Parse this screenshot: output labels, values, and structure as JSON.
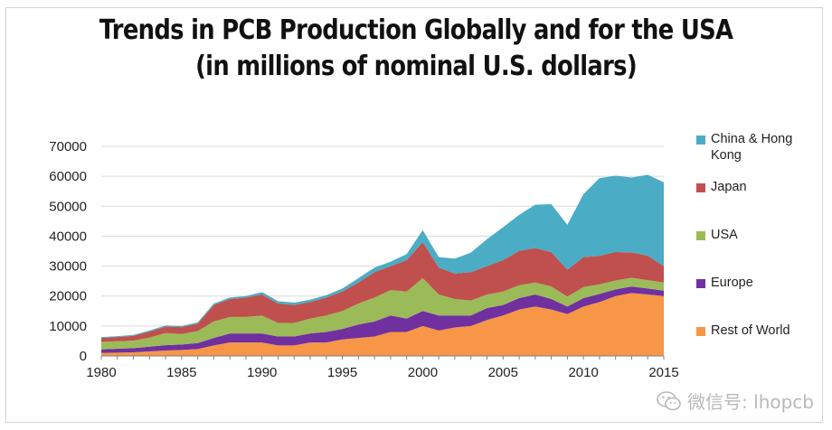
{
  "title": {
    "line1": "Trends in PCB Production Globally and for the USA",
    "line2": "(in millions of nominal U.S. dollars)"
  },
  "watermark": {
    "text": "微信号: lhopcb",
    "icon": "wechat-icon"
  },
  "chart_data": {
    "type": "area",
    "stacked": true,
    "title": "Trends in PCB Production Globally and for the USA (in millions of nominal U.S. dollars)",
    "xlim": [
      1980,
      2015
    ],
    "ylim": [
      0,
      70000
    ],
    "xticks": [
      1980,
      1985,
      1990,
      1995,
      2000,
      2005,
      2010,
      2015
    ],
    "yticks": [
      0,
      10000,
      20000,
      30000,
      40000,
      50000,
      60000,
      70000
    ],
    "grid": "horizontal",
    "legend_position": "right",
    "x": [
      1980,
      1981,
      1982,
      1983,
      1984,
      1985,
      1986,
      1987,
      1988,
      1989,
      1990,
      1991,
      1992,
      1993,
      1994,
      1995,
      1996,
      1997,
      1998,
      1999,
      2000,
      2001,
      2002,
      2003,
      2004,
      2005,
      2006,
      2007,
      2008,
      2009,
      2010,
      2011,
      2012,
      2013,
      2014,
      2015
    ],
    "series": [
      {
        "name": "Rest of World",
        "color": "#f79646",
        "values": [
          1000,
          1100,
          1200,
          1500,
          1800,
          2000,
          2300,
          3500,
          4500,
          4500,
          4500,
          3500,
          3500,
          4500,
          4500,
          5500,
          6000,
          6500,
          8000,
          8000,
          10000,
          8500,
          9500,
          10000,
          12000,
          13500,
          15500,
          16500,
          15500,
          14000,
          16500,
          18000,
          20000,
          21000,
          20500,
          20000
        ]
      },
      {
        "name": "Europe",
        "color": "#7030a0",
        "values": [
          1200,
          1300,
          1400,
          1600,
          1800,
          1800,
          2000,
          2500,
          3000,
          3000,
          3000,
          3000,
          3000,
          3000,
          3500,
          3500,
          4500,
          5000,
          5500,
          4500,
          5000,
          5000,
          4000,
          3500,
          4000,
          3500,
          3800,
          4000,
          3500,
          2500,
          2800,
          2700,
          2200,
          2200,
          2000,
          1800
        ]
      },
      {
        "name": "USA",
        "color": "#9bbb59",
        "values": [
          2500,
          2500,
          2500,
          3000,
          4000,
          3500,
          4000,
          5500,
          5500,
          5500,
          6000,
          4500,
          4500,
          5000,
          5500,
          6000,
          7000,
          8000,
          8500,
          9000,
          11000,
          7000,
          5500,
          5000,
          4500,
          4500,
          4300,
          4000,
          4200,
          3300,
          3700,
          3200,
          3000,
          2900,
          2800,
          2700
        ]
      },
      {
        "name": "Japan",
        "color": "#c0504d",
        "values": [
          1300,
          1400,
          1600,
          2000,
          2200,
          2300,
          2500,
          5500,
          6000,
          6500,
          7000,
          6500,
          6000,
          5500,
          6000,
          6500,
          7000,
          8500,
          8000,
          10500,
          12000,
          9000,
          8500,
          9500,
          9500,
          10500,
          11500,
          11500,
          11500,
          9000,
          10000,
          9500,
          9500,
          8500,
          8200,
          5500
        ]
      },
      {
        "name": "China  & Hong Kong",
        "color": "#4bacc6",
        "values": [
          300,
          300,
          300,
          400,
          400,
          400,
          400,
          500,
          500,
          500,
          800,
          800,
          800,
          800,
          800,
          1000,
          1500,
          1500,
          1500,
          2000,
          4000,
          3500,
          5000,
          6500,
          9000,
          11000,
          12000,
          14500,
          16000,
          15000,
          21000,
          26000,
          25500,
          25000,
          27000,
          28000
        ]
      }
    ]
  }
}
